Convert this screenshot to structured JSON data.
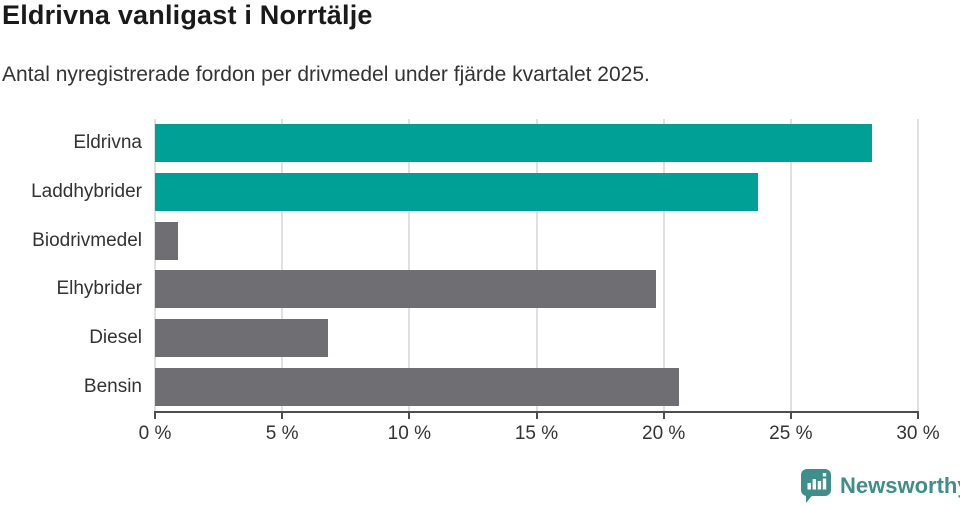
{
  "header": {
    "title": "Eldrivna vanligast i Norrtälje",
    "subtitle": "Antal nyregistrerade fordon per drivmedel under fjärde kvartalet 2025."
  },
  "chart_data": {
    "type": "bar",
    "orientation": "horizontal",
    "title": "Eldrivna vanligast i Norrtälje",
    "subtitle": "Antal nyregistrerade fordon per drivmedel under fjärde kvartalet 2025.",
    "categories": [
      "Eldrivna",
      "Laddhybrider",
      "Biodrivmedel",
      "Elhybrider",
      "Diesel",
      "Bensin"
    ],
    "values": [
      28.2,
      23.7,
      0.9,
      19.7,
      6.8,
      20.6
    ],
    "unit": "%",
    "bar_colors": [
      "#00a096",
      "#00a096",
      "#6e6e73",
      "#6e6e73",
      "#6e6e73",
      "#6e6e73"
    ],
    "xlabel": "",
    "ylabel": "",
    "xlim": [
      0,
      30
    ],
    "x_ticks": [
      0,
      5,
      10,
      15,
      20,
      25,
      30
    ],
    "x_tick_labels": [
      "0 %",
      "5 %",
      "10 %",
      "15 %",
      "20 %",
      "25 %",
      "30 %"
    ],
    "grid": "vertical-on",
    "legend": "none"
  },
  "footer": {
    "brand": "Newsworthy"
  },
  "colors": {
    "accent_teal": "#00a096",
    "bar_gray": "#6e6e73",
    "logo_teal": "#3f8e8b",
    "gridline": "#e0e0e0",
    "axis": "#4d4d4d",
    "title_text": "#1a1a1a",
    "body_text": "#333333"
  }
}
